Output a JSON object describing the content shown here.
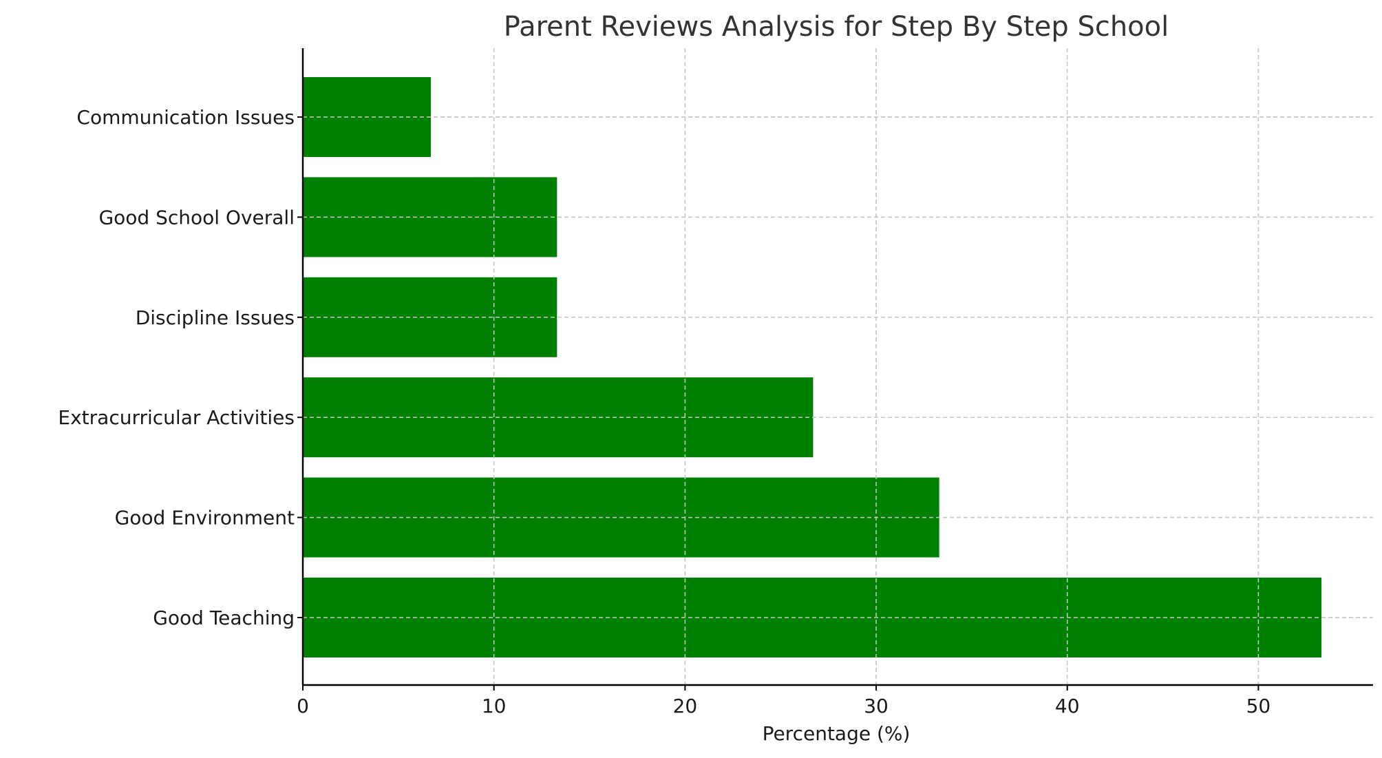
{
  "chart_data": {
    "type": "bar",
    "orientation": "horizontal",
    "title": "Parent Reviews Analysis for Step By Step School",
    "xlabel": "Percentage (%)",
    "ylabel": "",
    "categories": [
      "Good Teaching",
      "Good Environment",
      "Extracurricular Activities",
      "Discipline Issues",
      "Good School Overall",
      "Communication Issues"
    ],
    "values": [
      53.3,
      33.3,
      26.7,
      13.3,
      13.3,
      6.7
    ],
    "xlim": [
      0,
      56
    ],
    "xticks": [
      0,
      10,
      20,
      30,
      40,
      50
    ],
    "grid": true,
    "bar_color": "#008000"
  }
}
